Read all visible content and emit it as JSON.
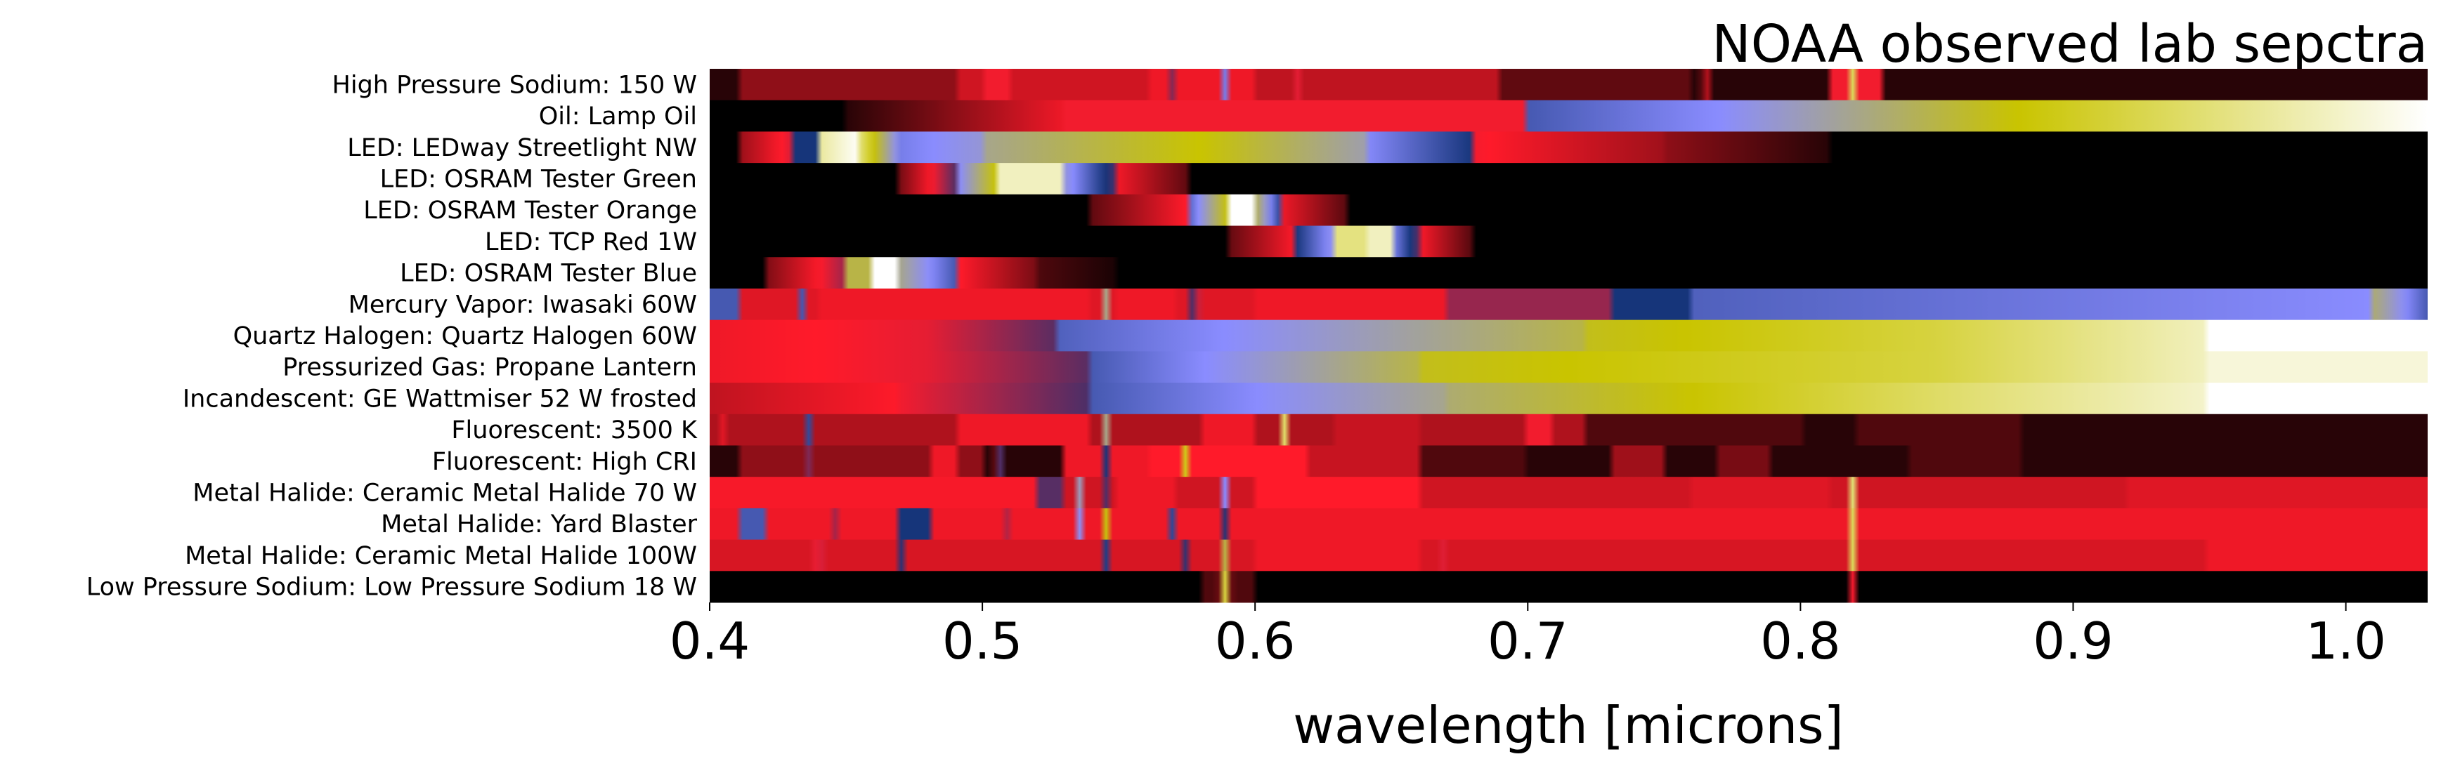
{
  "chart_data": {
    "type": "heatmap",
    "title": "NOAA observed lab sepctra",
    "xlabel": "wavelength [microns]",
    "ylabel": "",
    "xlim": [
      0.4,
      1.03
    ],
    "xticks": [
      "0.4",
      "0.5",
      "0.6",
      "0.7",
      "0.8",
      "0.9",
      "1.0"
    ],
    "grid": false,
    "legend": "none",
    "colormap": {
      "stops": [
        [
          0.0,
          "#000000"
        ],
        [
          0.32,
          "#ff1a2a"
        ],
        [
          0.5,
          "#16357a"
        ],
        [
          0.62,
          "#8a8cff"
        ],
        [
          0.8,
          "#c9c400"
        ],
        [
          1.0,
          "#ffffff"
        ]
      ]
    },
    "rows": [
      {
        "label": "High Pressure Sodium: 150 W",
        "base": 0.05,
        "features": [
          {
            "x": 0.41,
            "x2": 0.49,
            "v": 0.18
          },
          {
            "x": 0.49,
            "x2": 0.58,
            "v": 0.26
          },
          {
            "x": 0.5,
            "x2": 0.51,
            "v": 0.33
          },
          {
            "x": 0.56,
            "x2": 0.6,
            "v": 0.3
          },
          {
            "x": 0.6,
            "x2": 0.69,
            "v": 0.24
          },
          {
            "x": 0.69,
            "x2": 0.76,
            "v": 0.12
          },
          {
            "x": 0.765,
            "w": 0.004,
            "v": 0.33
          },
          {
            "x": 0.81,
            "x2": 0.83,
            "v": 0.33
          },
          {
            "x": 0.569,
            "w": 0.003,
            "v": 0.58
          },
          {
            "x": 0.589,
            "w": 0.003,
            "v": 0.6
          },
          {
            "x": 0.615,
            "w": 0.003,
            "v": 0.5
          },
          {
            "x": 0.819,
            "w": 0.003,
            "v": 0.9
          }
        ]
      },
      {
        "label": "Oil: Lamp Oil",
        "base": 0.0,
        "features": [
          {
            "x": 0.45,
            "x2": 0.53,
            "v0": 0.05,
            "v1": 0.3
          },
          {
            "x": 0.53,
            "x2": 0.7,
            "v": 0.33
          },
          {
            "x": 0.7,
            "x2": 0.77,
            "v0": 0.55,
            "v1": 0.62
          },
          {
            "x": 0.77,
            "x2": 0.88,
            "v0": 0.62,
            "v1": 0.8
          },
          {
            "x": 0.88,
            "x2": 1.03,
            "v0": 0.8,
            "v1": 1.0
          }
        ]
      },
      {
        "label": "LED: LEDway Streetlight NW",
        "base": 0.0,
        "features": [
          {
            "x": 0.412,
            "x2": 0.43,
            "v0": 0.2,
            "v1": 0.35
          },
          {
            "x": 0.43,
            "x2": 0.44,
            "v": 0.5
          },
          {
            "x": 0.44,
            "x2": 0.455,
            "v0": 0.92,
            "v1": 1.0
          },
          {
            "x": 0.455,
            "x2": 0.47,
            "v0": 0.9,
            "v1": 0.6
          },
          {
            "x": 0.47,
            "x2": 0.5,
            "v0": 0.6,
            "v1": 0.65
          },
          {
            "x": 0.5,
            "x2": 0.58,
            "v0": 0.7,
            "v1": 0.8
          },
          {
            "x": 0.58,
            "x2": 0.64,
            "v0": 0.8,
            "v1": 0.68
          },
          {
            "x": 0.64,
            "x2": 0.68,
            "v0": 0.62,
            "v1": 0.5
          },
          {
            "x": 0.68,
            "x2": 0.75,
            "v0": 0.33,
            "v1": 0.2
          },
          {
            "x": 0.75,
            "x2": 0.81,
            "v0": 0.18,
            "v1": 0.05
          }
        ]
      },
      {
        "label": "LED: OSRAM Tester Green",
        "base": 0.0,
        "features": [
          {
            "x": 0.47,
            "x2": 0.49,
            "v0": 0.15,
            "v1": 0.45
          },
          {
            "x": 0.49,
            "x2": 0.505,
            "v0": 0.6,
            "v1": 0.8
          },
          {
            "x": 0.505,
            "x2": 0.53,
            "v0": 0.95,
            "v1": 0.95
          },
          {
            "x": 0.53,
            "x2": 0.55,
            "v0": 0.65,
            "v1": 0.45
          },
          {
            "x": 0.55,
            "x2": 0.575,
            "v0": 0.3,
            "v1": 0.12
          }
        ]
      },
      {
        "label": "LED: OSRAM Tester Orange",
        "base": 0.0,
        "features": [
          {
            "x": 0.54,
            "x2": 0.575,
            "v0": 0.12,
            "v1": 0.32
          },
          {
            "x": 0.575,
            "x2": 0.59,
            "v0": 0.55,
            "v1": 0.8
          },
          {
            "x": 0.59,
            "x2": 0.6,
            "v": 1.0
          },
          {
            "x": 0.6,
            "x2": 0.61,
            "v0": 0.75,
            "v1": 0.5
          },
          {
            "x": 0.61,
            "x2": 0.635,
            "v0": 0.3,
            "v1": 0.1
          }
        ]
      },
      {
        "label": "LED: TCP Red 1W",
        "base": 0.0,
        "features": [
          {
            "x": 0.59,
            "x2": 0.615,
            "v0": 0.12,
            "v1": 0.32
          },
          {
            "x": 0.615,
            "x2": 0.63,
            "v0": 0.5,
            "v1": 0.65
          },
          {
            "x": 0.63,
            "x2": 0.64,
            "v": 0.9
          },
          {
            "x": 0.64,
            "x2": 0.65,
            "v": 0.95
          },
          {
            "x": 0.65,
            "x2": 0.66,
            "v0": 0.62,
            "v1": 0.45
          },
          {
            "x": 0.66,
            "x2": 0.68,
            "v0": 0.32,
            "v1": 0.1
          }
        ]
      },
      {
        "label": "LED: OSRAM Tester Blue",
        "base": 0.0,
        "features": [
          {
            "x": 0.42,
            "x2": 0.45,
            "v0": 0.15,
            "v1": 0.4
          },
          {
            "x": 0.45,
            "x2": 0.46,
            "v": 0.75
          },
          {
            "x": 0.46,
            "x2": 0.47,
            "v": 1.0
          },
          {
            "x": 0.47,
            "x2": 0.49,
            "v0": 0.7,
            "v1": 0.55
          },
          {
            "x": 0.49,
            "x2": 0.52,
            "v0": 0.33,
            "v1": 0.15
          },
          {
            "x": 0.52,
            "x2": 0.55,
            "v0": 0.1,
            "v1": 0.03
          }
        ]
      },
      {
        "label": "Mercury Vapor: Iwasaki 60W",
        "base": 0.28,
        "features": [
          {
            "x": 0.4,
            "x2": 0.41,
            "v": 0.55
          },
          {
            "x": 0.41,
            "x2": 0.44,
            "v": 0.2
          },
          {
            "x": 0.434,
            "w": 0.004,
            "v": 0.55
          },
          {
            "x": 0.44,
            "x2": 0.54,
            "v": 0.3
          },
          {
            "x": 0.546,
            "w": 0.004,
            "v": 0.85
          },
          {
            "x": 0.55,
            "x2": 0.57,
            "v": 0.3
          },
          {
            "x": 0.578,
            "w": 0.004,
            "v": 0.85
          },
          {
            "x": 0.6,
            "x2": 0.67,
            "v": 0.3
          },
          {
            "x": 0.67,
            "x2": 0.73,
            "v": 0.4
          },
          {
            "x": 0.73,
            "x2": 0.76,
            "v": 0.5
          },
          {
            "x": 0.76,
            "x2": 1.01,
            "v0": 0.56,
            "v1": 0.62
          },
          {
            "x": 1.01,
            "x2": 1.03,
            "v0": 0.72,
            "v1": 0.55
          }
        ]
      },
      {
        "label": "Quartz Halogen: Quartz Halogen 60W",
        "base": 0.0,
        "features": [
          {
            "x": 0.4,
            "x2": 0.48,
            "v0": 0.3,
            "v1": 0.34
          },
          {
            "x": 0.48,
            "x2": 0.528,
            "v0": 0.34,
            "v1": 0.45
          },
          {
            "x": 0.528,
            "x2": 0.72,
            "v0": 0.56,
            "v1": 0.75
          },
          {
            "x": 0.72,
            "x2": 0.85,
            "v0": 0.78,
            "v1": 0.85
          },
          {
            "x": 0.85,
            "x2": 0.95,
            "v0": 0.85,
            "v1": 0.95
          },
          {
            "x": 0.95,
            "x2": 1.03,
            "v": 1.0
          }
        ]
      },
      {
        "label": "Pressurized Gas: Propane Lantern",
        "base": 0.0,
        "features": [
          {
            "x": 0.4,
            "x2": 0.48,
            "v0": 0.3,
            "v1": 0.34
          },
          {
            "x": 0.48,
            "x2": 0.54,
            "v0": 0.34,
            "v1": 0.45
          },
          {
            "x": 0.54,
            "x2": 0.66,
            "v0": 0.55,
            "v1": 0.75
          },
          {
            "x": 0.66,
            "x2": 0.85,
            "v0": 0.78,
            "v1": 0.85
          },
          {
            "x": 0.85,
            "x2": 0.95,
            "v0": 0.85,
            "v1": 0.95
          },
          {
            "x": 0.95,
            "x2": 1.03,
            "v": 0.97
          }
        ]
      },
      {
        "label": "Incandescent: GE Wattmiser 52 W frosted",
        "base": 0.0,
        "features": [
          {
            "x": 0.4,
            "x2": 0.47,
            "v0": 0.24,
            "v1": 0.32
          },
          {
            "x": 0.47,
            "x2": 0.54,
            "v0": 0.33,
            "v1": 0.46
          },
          {
            "x": 0.54,
            "x2": 0.67,
            "v0": 0.55,
            "v1": 0.7
          },
          {
            "x": 0.67,
            "x2": 0.85,
            "v0": 0.72,
            "v1": 0.88
          },
          {
            "x": 0.85,
            "x2": 0.95,
            "v0": 0.88,
            "v1": 0.96
          },
          {
            "x": 0.95,
            "x2": 1.03,
            "v": 1.0
          }
        ]
      },
      {
        "label": "Fluorescent: 3500 K",
        "base": 0.05,
        "features": [
          {
            "x": 0.4,
            "x2": 0.72,
            "v": 0.22
          },
          {
            "x": 0.404,
            "w": 0.006,
            "v": 0.33
          },
          {
            "x": 0.436,
            "w": 0.005,
            "v": 0.55
          },
          {
            "x": 0.49,
            "x2": 0.54,
            "v": 0.3
          },
          {
            "x": 0.546,
            "w": 0.004,
            "v": 0.85
          },
          {
            "x": 0.58,
            "x2": 0.6,
            "v": 0.3
          },
          {
            "x": 0.611,
            "w": 0.004,
            "v": 0.9
          },
          {
            "x": 0.63,
            "x2": 0.66,
            "v": 0.25
          },
          {
            "x": 0.7,
            "x2": 0.71,
            "v": 0.33
          },
          {
            "x": 0.72,
            "x2": 0.8,
            "v": 0.1
          },
          {
            "x": 0.82,
            "x2": 0.88,
            "v": 0.1
          }
        ]
      },
      {
        "label": "Fluorescent: High CRI",
        "base": 0.05,
        "features": [
          {
            "x": 0.41,
            "x2": 0.5,
            "v": 0.18
          },
          {
            "x": 0.437,
            "w": 0.004,
            "v": 0.52
          },
          {
            "x": 0.48,
            "x2": 0.49,
            "v": 0.3
          },
          {
            "x": 0.506,
            "w": 0.004,
            "v": 0.55
          },
          {
            "x": 0.53,
            "x2": 0.56,
            "v": 0.3
          },
          {
            "x": 0.546,
            "w": 0.004,
            "v": 0.6
          },
          {
            "x": 0.56,
            "x2": 0.62,
            "v": 0.32
          },
          {
            "x": 0.575,
            "w": 0.005,
            "v": 0.9
          },
          {
            "x": 0.62,
            "x2": 0.66,
            "v": 0.25
          },
          {
            "x": 0.66,
            "x2": 0.7,
            "v": 0.1
          },
          {
            "x": 0.73,
            "x2": 0.75,
            "v": 0.2
          },
          {
            "x": 0.77,
            "x2": 0.79,
            "v": 0.15
          },
          {
            "x": 0.84,
            "x2": 0.88,
            "v": 0.1
          }
        ]
      },
      {
        "label": "Metal Halide: Ceramic Metal Halide 70 W",
        "base": 0.26,
        "features": [
          {
            "x": 0.4,
            "x2": 0.52,
            "v": 0.31
          },
          {
            "x": 0.52,
            "x2": 0.53,
            "v": 0.45
          },
          {
            "x": 0.535,
            "w": 0.004,
            "v": 0.85
          },
          {
            "x": 0.546,
            "w": 0.004,
            "v": 0.55
          },
          {
            "x": 0.55,
            "x2": 0.57,
            "v": 0.3
          },
          {
            "x": 0.589,
            "w": 0.006,
            "v": 0.62
          },
          {
            "x": 0.6,
            "x2": 0.66,
            "v": 0.32
          },
          {
            "x": 0.66,
            "x2": 0.76,
            "v": 0.22
          },
          {
            "x": 0.76,
            "x2": 0.81,
            "v": 0.28
          },
          {
            "x": 0.819,
            "w": 0.003,
            "v": 0.92
          },
          {
            "x": 0.83,
            "x2": 0.92,
            "v": 0.2
          },
          {
            "x": 0.92,
            "x2": 1.03,
            "v": 0.28
          }
        ]
      },
      {
        "label": "Metal Halide: Yard Blaster",
        "base": 0.3,
        "features": [
          {
            "x": 0.41,
            "x2": 0.42,
            "v": 0.55
          },
          {
            "x": 0.445,
            "w": 0.005,
            "v": 0.55
          },
          {
            "x": 0.47,
            "x2": 0.48,
            "v": 0.5
          },
          {
            "x": 0.51,
            "w": 0.004,
            "v": 0.6
          },
          {
            "x": 0.535,
            "w": 0.004,
            "v": 0.8
          },
          {
            "x": 0.545,
            "w": 0.004,
            "v": 0.85
          },
          {
            "x": 0.57,
            "w": 0.003,
            "v": 0.6
          },
          {
            "x": 0.59,
            "w": 0.004,
            "v": 0.8
          },
          {
            "x": 0.6,
            "x2": 0.66,
            "v": 0.3
          },
          {
            "x": 0.66,
            "x2": 0.76,
            "v": 0.26
          },
          {
            "x": 0.819,
            "w": 0.003,
            "v": 0.9
          },
          {
            "x": 0.83,
            "x2": 0.92,
            "v": 0.25
          },
          {
            "x": 0.92,
            "x2": 1.03,
            "v": 0.3
          }
        ]
      },
      {
        "label": "Metal Halide: Ceramic Metal Halide 100W",
        "base": 0.27,
        "features": [
          {
            "x": 0.44,
            "w": 0.005,
            "v": 0.55
          },
          {
            "x": 0.47,
            "w": 0.004,
            "v": 0.5
          },
          {
            "x": 0.545,
            "w": 0.004,
            "v": 0.55
          },
          {
            "x": 0.575,
            "w": 0.004,
            "v": 0.55
          },
          {
            "x": 0.589,
            "w": 0.006,
            "v": 0.75
          },
          {
            "x": 0.6,
            "x2": 0.66,
            "v": 0.3
          },
          {
            "x": 0.67,
            "w": 0.003,
            "v": 0.9
          },
          {
            "x": 0.68,
            "x2": 0.76,
            "v": 0.24
          },
          {
            "x": 0.819,
            "w": 0.003,
            "v": 0.9
          },
          {
            "x": 0.83,
            "x2": 0.95,
            "v": 0.22
          },
          {
            "x": 0.95,
            "x2": 1.03,
            "v": 0.3
          }
        ]
      },
      {
        "label": "Low Pressure Sodium: Low Pressure Sodium 18 W",
        "base": 0.0,
        "features": [
          {
            "x": 0.589,
            "w": 0.005,
            "v": 0.85
          },
          {
            "x": 0.58,
            "x2": 0.6,
            "v": 0.1
          },
          {
            "x": 0.819,
            "w": 0.003,
            "v": 0.34
          }
        ]
      }
    ]
  }
}
